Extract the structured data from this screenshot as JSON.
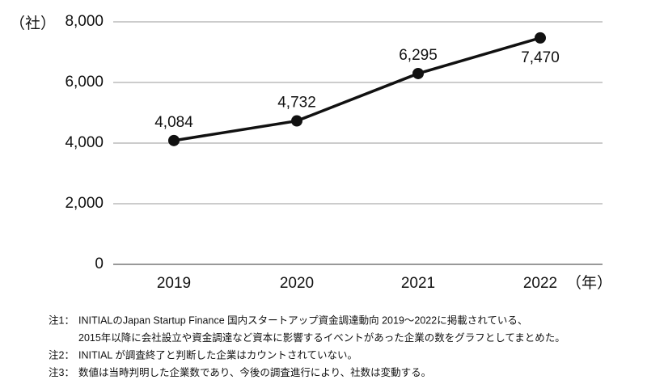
{
  "chart_data": {
    "type": "line",
    "y_unit": "（社）",
    "x_unit": "（年）",
    "categories": [
      "2019",
      "2020",
      "2021",
      "2022"
    ],
    "series": [
      {
        "name": null,
        "color": "#111111",
        "values": [
          4084,
          4732,
          6295,
          7470
        ],
        "value_labels": [
          "4,084",
          "4,732",
          "6,295",
          "7,470"
        ]
      }
    ],
    "ylim": [
      0,
      8000
    ],
    "yticks": [
      0,
      {
        "value": 2000,
        "label": "2,000"
      },
      {
        "value": 4000,
        "label": "4,000"
      },
      {
        "value": 6000,
        "label": "6,000"
      },
      {
        "value": 8000,
        "label": "8,000"
      }
    ],
    "grid": true
  },
  "notes": [
    {
      "label": "注1：",
      "lines": [
        "INITIALのJapan Startup Finance 国内スタートアップ資金調達動向 2019～2022に掲載されている、",
        "2015年以降に会社設立や資金調達など資本に影響するイベントがあった企業の数をグラフとしてまとめた。"
      ]
    },
    {
      "label": "注2：",
      "lines": [
        "INITIAL が調査終了と判断した企業はカウントされていない。"
      ]
    },
    {
      "label": "注3：",
      "lines": [
        "数値は当時判明した企業数であり、今後の調査進行により、社数は変動する。"
      ]
    }
  ]
}
